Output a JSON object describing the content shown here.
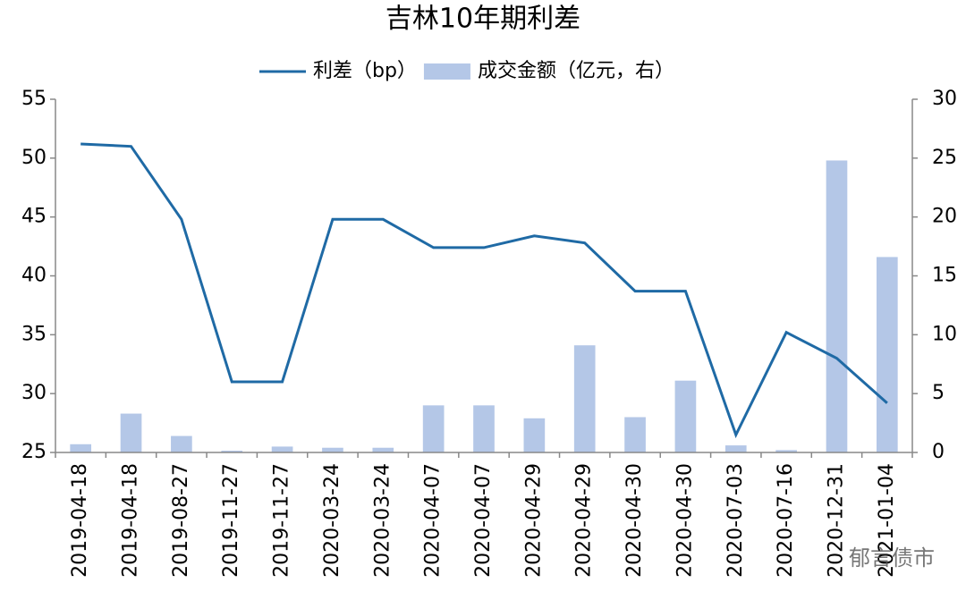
{
  "chart_data": {
    "type": "bar-line",
    "title": "吉林10年期利差",
    "categories": [
      "2019-04-18",
      "2019-04-18",
      "2019-08-27",
      "2019-11-27",
      "2019-11-27",
      "2020-03-24",
      "2020-03-24",
      "2020-04-07",
      "2020-04-07",
      "2020-04-29",
      "2020-04-29",
      "2020-04-30",
      "2020-04-30",
      "2020-07-03",
      "2020-07-16",
      "2020-12-31",
      "2021-01-04"
    ],
    "series": [
      {
        "name": "利差（bp）",
        "kind": "line",
        "color": "#1f6aa5",
        "values": [
          51.2,
          51.0,
          44.8,
          31.0,
          31.0,
          44.8,
          44.8,
          42.4,
          42.4,
          43.4,
          42.8,
          38.7,
          38.7,
          26.5,
          35.2,
          33.0,
          29.2
        ]
      },
      {
        "name": "成交金额（亿元，右）",
        "kind": "bar",
        "axis": "y2",
        "color": "#b4c7e7",
        "values": [
          0.7,
          3.3,
          1.4,
          0.15,
          0.5,
          0.4,
          0.4,
          4.0,
          4.0,
          2.9,
          9.1,
          3.0,
          6.1,
          0.6,
          0.2,
          24.8,
          16.6
        ]
      }
    ],
    "ylim": [
      25,
      55
    ],
    "yticks": [
      25,
      30,
      35,
      40,
      45,
      50,
      55
    ],
    "y2lim": [
      0,
      30
    ],
    "y2ticks": [
      0,
      5,
      10,
      15,
      20,
      25,
      30
    ],
    "watermark": "郁言债市"
  }
}
